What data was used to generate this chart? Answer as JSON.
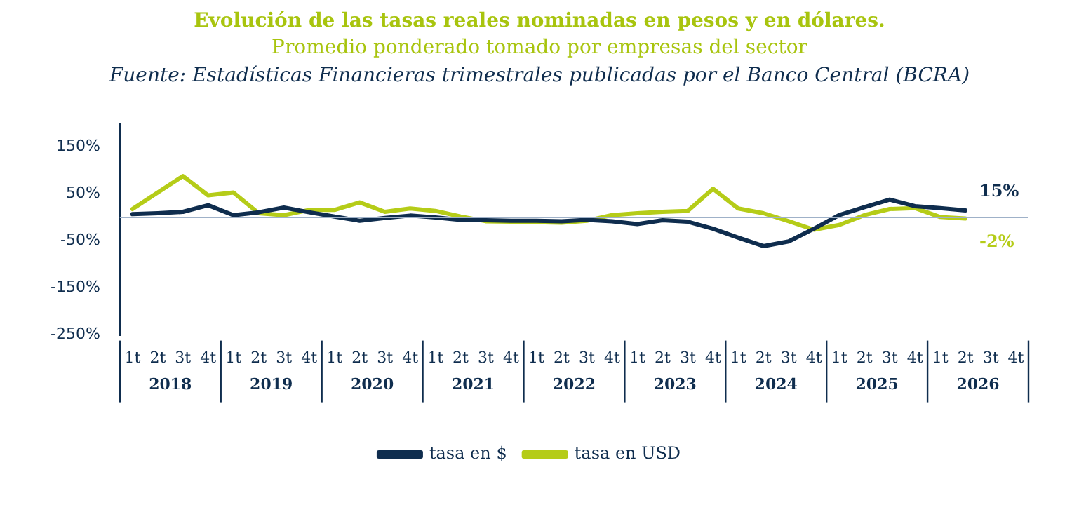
{
  "chart_data": {
    "type": "line",
    "title": "Evolución de las tasas reales nominadas en pesos y en dólares.",
    "subtitle": "Promedio ponderado tomado por empresas del sector",
    "annotations": [
      "Fuente: Estadísticas Financieras trimestrales publicadas por el Banco Central (BCRA)",
      "2018",
      "2019",
      "2020",
      "2021",
      "2022",
      "2023",
      "2024",
      "2025",
      "2026"
    ],
    "categories": [
      "1t",
      "2t",
      "3t",
      "4t",
      "1t",
      "2t",
      "3t",
      "4t",
      "1t",
      "2t",
      "3t",
      "4t",
      "1t",
      "2t",
      "3t",
      "4t",
      "1t",
      "2t",
      "3t",
      "4t",
      "1t",
      "2t",
      "3t",
      "4t",
      "1t",
      "2t",
      "3t",
      "4t",
      "1t",
      "2t",
      "3t",
      "4t",
      "1t",
      "2t",
      "3t",
      "4t"
    ],
    "series": [
      {
        "name": "tasa en $",
        "color": "#0f2d4e",
        "values": [
          7,
          9,
          12,
          26,
          5,
          11,
          21,
          11,
          2,
          -7,
          -1,
          4,
          0,
          -5,
          -6,
          -7,
          -7,
          -8,
          -5,
          -8,
          -14,
          -6,
          -9,
          -24,
          -43,
          -61,
          -51,
          -24,
          5,
          22,
          38,
          24,
          20,
          15,
          null,
          null
        ],
        "value_labels": [
          null,
          null,
          null,
          null,
          null,
          null,
          null,
          null,
          null,
          null,
          null,
          null,
          null,
          null,
          null,
          null,
          null,
          null,
          null,
          null,
          null,
          null,
          null,
          null,
          null,
          null,
          null,
          null,
          null,
          null,
          null,
          null,
          null,
          "15%",
          null,
          null
        ]
      },
      {
        "name": "tasa en USD",
        "color": "#b5cc18",
        "values": [
          18,
          53,
          88,
          47,
          53,
          9,
          5,
          16,
          16,
          32,
          12,
          19,
          14,
          2,
          -8,
          -9,
          -10,
          -11,
          -7,
          5,
          9,
          12,
          14,
          61,
          19,
          9,
          -8,
          -26,
          -16,
          5,
          18,
          20,
          1,
          -2,
          null,
          null
        ],
        "value_labels": [
          null,
          null,
          null,
          null,
          null,
          null,
          null,
          null,
          null,
          null,
          null,
          null,
          null,
          null,
          null,
          null,
          null,
          null,
          null,
          null,
          null,
          null,
          null,
          null,
          null,
          null,
          null,
          null,
          null,
          null,
          null,
          null,
          null,
          "-2%",
          null,
          null
        ]
      }
    ],
    "ylim": [
      -250,
      200
    ],
    "yticks": [
      {
        "value": -250,
        "label": "-250%"
      },
      {
        "value": -150,
        "label": "-150%"
      },
      {
        "value": -50,
        "label": "-50%"
      },
      {
        "value": 50,
        "label": "50%"
      },
      {
        "value": 150,
        "label": "150%"
      }
    ],
    "ref_lines": [
      {
        "axis": "y",
        "value": 0,
        "color": "#9fb1c8"
      }
    ],
    "grid": false,
    "legend": "bottom",
    "marker": "none",
    "line_style": "solid"
  }
}
